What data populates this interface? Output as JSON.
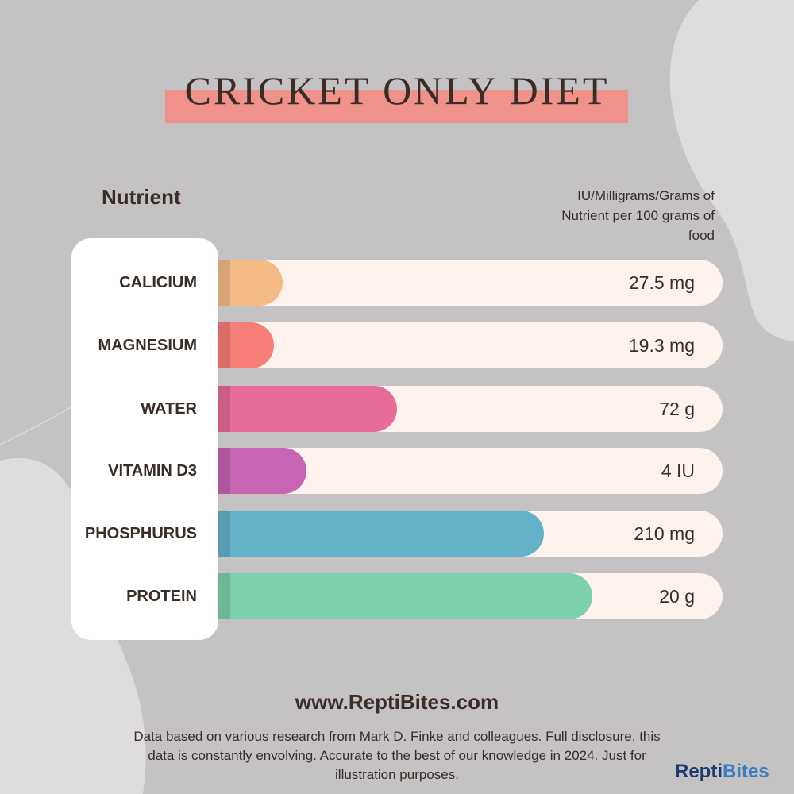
{
  "header": {
    "title": "CRICKET ONLY DIET"
  },
  "columns": {
    "nutrient": "Nutrient",
    "unit": "IU/Milligrams/Grams of Nutrient per 100 grams of food"
  },
  "rows": [
    {
      "name": "CALICIUM",
      "value": "27.5 mg"
    },
    {
      "name": "MAGNESIUM",
      "value": "19.3 mg"
    },
    {
      "name": "WATER",
      "value": "72 g"
    },
    {
      "name": "VITAMIN D3",
      "value": "4 IU"
    },
    {
      "name": "PHOSPHURUS",
      "value": "210 mg"
    },
    {
      "name": "PROTEIN",
      "value": "20 g"
    }
  ],
  "footer": {
    "website": "www.ReptiBites.com",
    "note": "Data based on various research from Mark D. Finke and colleagues. Full disclosure, this data is constantly envolving. Accurate to the best of our knowledge in 2024. Just for illustration purposes.",
    "brand": [
      "Repti",
      "Bites"
    ]
  }
}
